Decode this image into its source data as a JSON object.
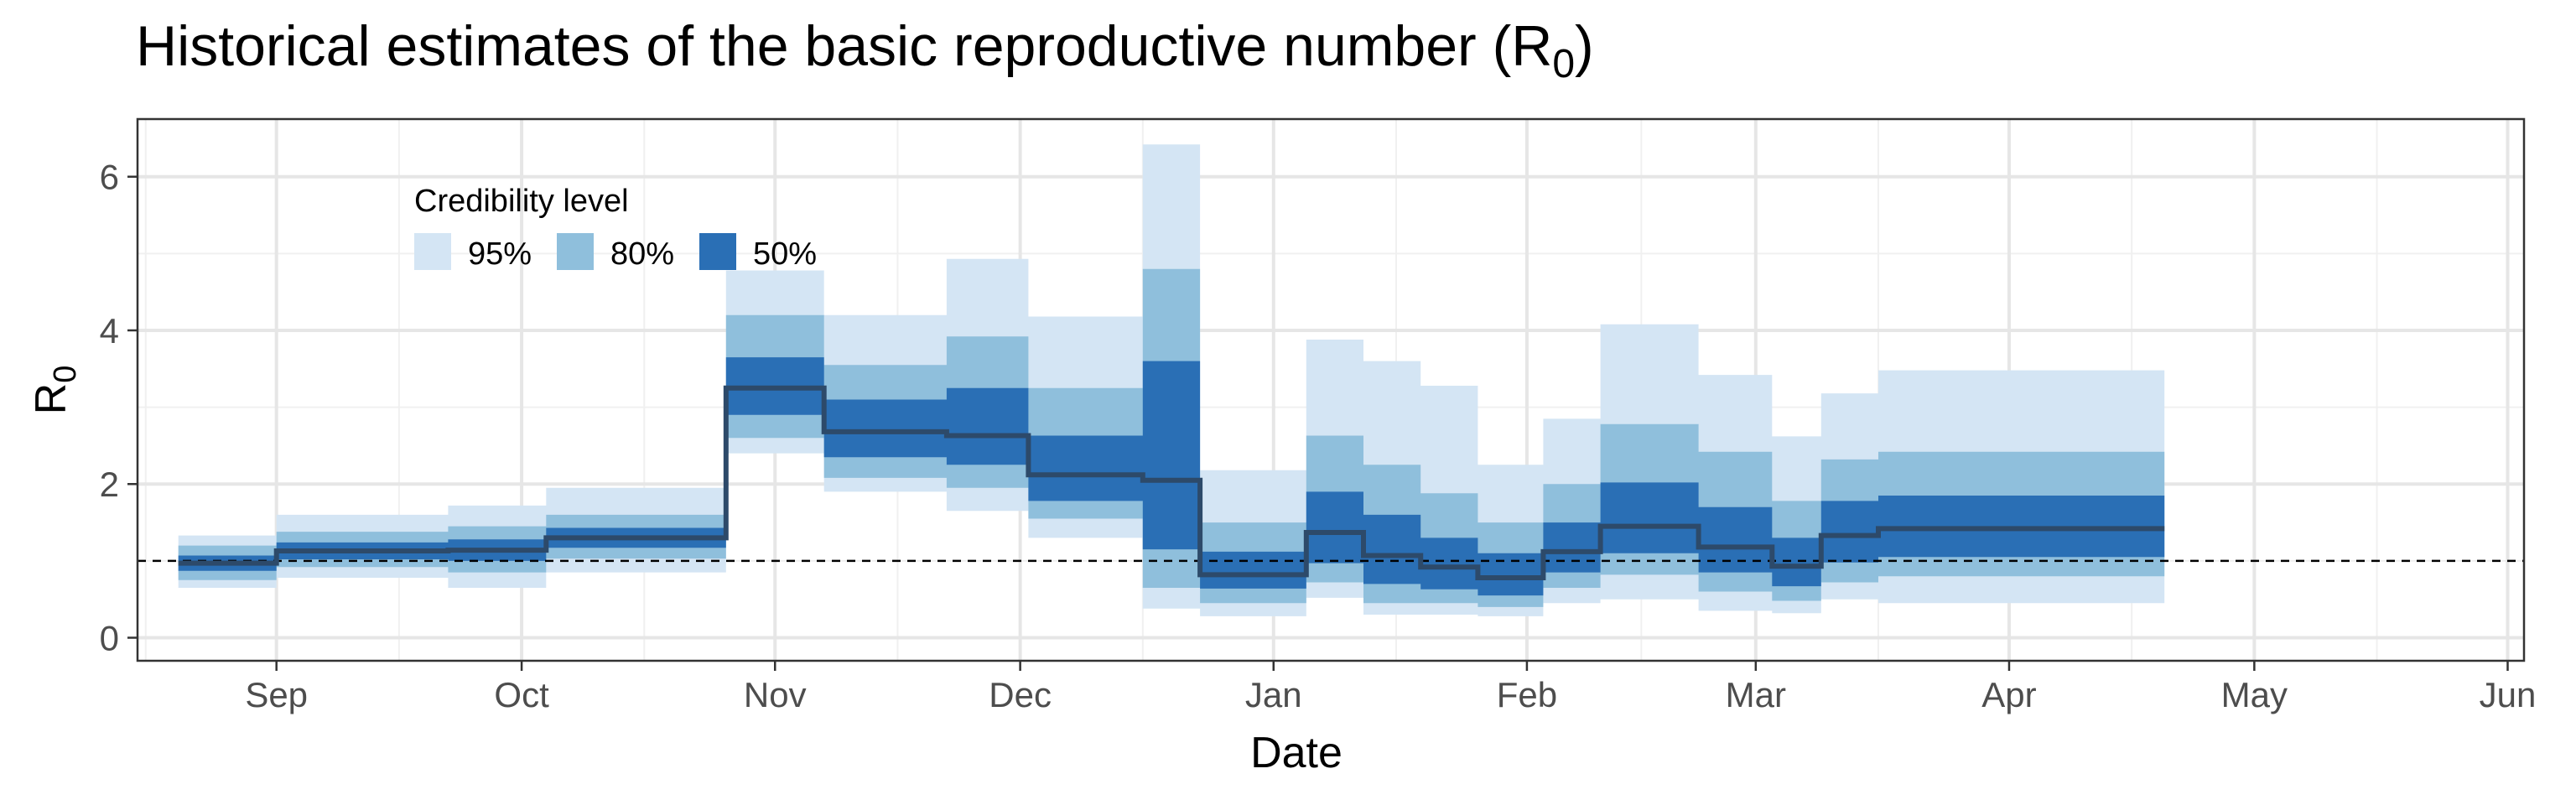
{
  "chart_data": {
    "type": "area",
    "title": "Historical estimates of the basic reproductive number (R",
    "title_subscript": "0",
    "title_suffix": ")",
    "xlabel": "Date",
    "ylabel": "R",
    "ylabel_subscript": "0",
    "x_ticks": [
      "Sep",
      "Oct",
      "Nov",
      "Dec",
      "Jan",
      "Feb",
      "Mar",
      "Apr",
      "May",
      "Jun"
    ],
    "x_tick_dates": [
      "2020-09-01",
      "2020-10-01",
      "2020-11-01",
      "2020-12-01",
      "2021-01-01",
      "2021-02-01",
      "2021-03-01",
      "2021-04-01",
      "2021-05-01",
      "2021-06-01"
    ],
    "xlim": [
      "2020-08-15",
      "2021-06-03"
    ],
    "y_ticks": [
      "0",
      "2",
      "4",
      "6"
    ],
    "y_tick_values": [
      0,
      2,
      4,
      6
    ],
    "ylim": [
      -0.3,
      6.75
    ],
    "grid": true,
    "reference_line": 1,
    "legend": {
      "title": "Credibility level",
      "position": "top-left",
      "items": [
        {
          "label": "95%",
          "color": "#d4e5f4"
        },
        {
          "label": "80%",
          "color": "#8fbfdc"
        },
        {
          "label": "50%",
          "color": "#2a6fb5"
        }
      ]
    },
    "colors": {
      "median": "#2d4a6a",
      "ref_line": "#000000"
    },
    "segments": [
      {
        "start": "2020-08-20",
        "end": "2020-09-01",
        "median": 0.97,
        "lo50": 0.87,
        "hi50": 1.07,
        "lo80": 0.75,
        "hi80": 1.2,
        "lo95": 0.65,
        "hi95": 1.33
      },
      {
        "start": "2020-09-01",
        "end": "2020-09-22",
        "median": 1.13,
        "lo50": 1.02,
        "hi50": 1.24,
        "lo80": 0.92,
        "hi80": 1.38,
        "lo95": 0.78,
        "hi95": 1.6
      },
      {
        "start": "2020-09-22",
        "end": "2020-10-04",
        "median": 1.14,
        "lo50": 1.0,
        "hi50": 1.28,
        "lo80": 0.85,
        "hi80": 1.45,
        "lo95": 0.65,
        "hi95": 1.72
      },
      {
        "start": "2020-10-04",
        "end": "2020-10-26",
        "median": 1.3,
        "lo50": 1.17,
        "hi50": 1.43,
        "lo80": 1.03,
        "hi80": 1.6,
        "lo95": 0.85,
        "hi95": 1.95
      },
      {
        "start": "2020-10-26",
        "end": "2020-11-07",
        "median": 3.25,
        "lo50": 2.9,
        "hi50": 3.65,
        "lo80": 2.6,
        "hi80": 4.2,
        "lo95": 2.4,
        "hi95": 4.78
      },
      {
        "start": "2020-11-07",
        "end": "2020-11-22",
        "median": 2.68,
        "lo50": 2.35,
        "hi50": 3.1,
        "lo80": 2.08,
        "hi80": 3.55,
        "lo95": 1.9,
        "hi95": 4.2
      },
      {
        "start": "2020-11-22",
        "end": "2020-12-02",
        "median": 2.63,
        "lo50": 2.25,
        "hi50": 3.25,
        "lo80": 1.95,
        "hi80": 3.92,
        "lo95": 1.65,
        "hi95": 4.93
      },
      {
        "start": "2020-12-02",
        "end": "2020-12-16",
        "median": 2.12,
        "lo50": 1.78,
        "hi50": 2.63,
        "lo80": 1.55,
        "hi80": 3.25,
        "lo95": 1.3,
        "hi95": 4.18
      },
      {
        "start": "2020-12-16",
        "end": "2020-12-23",
        "median": 2.05,
        "lo50": 1.15,
        "hi50": 3.6,
        "lo80": 0.65,
        "hi80": 4.8,
        "lo95": 0.38,
        "hi95": 6.42
      },
      {
        "start": "2020-12-23",
        "end": "2021-01-05",
        "median": 0.82,
        "lo50": 0.64,
        "hi50": 1.12,
        "lo80": 0.45,
        "hi80": 1.5,
        "lo95": 0.28,
        "hi95": 2.18
      },
      {
        "start": "2021-01-05",
        "end": "2021-01-12",
        "median": 1.37,
        "lo50": 0.97,
        "hi50": 1.9,
        "lo80": 0.72,
        "hi80": 2.63,
        "lo95": 0.52,
        "hi95": 3.88
      },
      {
        "start": "2021-01-12",
        "end": "2021-01-19",
        "median": 1.07,
        "lo50": 0.7,
        "hi50": 1.6,
        "lo80": 0.45,
        "hi80": 2.25,
        "lo95": 0.3,
        "hi95": 3.6
      },
      {
        "start": "2021-01-19",
        "end": "2021-01-26",
        "median": 0.92,
        "lo50": 0.63,
        "hi50": 1.3,
        "lo80": 0.45,
        "hi80": 1.88,
        "lo95": 0.3,
        "hi95": 3.28
      },
      {
        "start": "2021-01-26",
        "end": "2021-02-03",
        "median": 0.78,
        "lo50": 0.55,
        "hi50": 1.1,
        "lo80": 0.4,
        "hi80": 1.5,
        "lo95": 0.28,
        "hi95": 2.25
      },
      {
        "start": "2021-02-03",
        "end": "2021-02-10",
        "median": 1.12,
        "lo50": 0.85,
        "hi50": 1.5,
        "lo80": 0.65,
        "hi80": 2.0,
        "lo95": 0.45,
        "hi95": 2.85
      },
      {
        "start": "2021-02-10",
        "end": "2021-02-22",
        "median": 1.45,
        "lo50": 1.1,
        "hi50": 2.02,
        "lo80": 0.82,
        "hi80": 2.78,
        "lo95": 0.5,
        "hi95": 4.08
      },
      {
        "start": "2021-02-22",
        "end": "2021-03-03",
        "median": 1.18,
        "lo50": 0.85,
        "hi50": 1.7,
        "lo80": 0.6,
        "hi80": 2.42,
        "lo95": 0.35,
        "hi95": 3.42
      },
      {
        "start": "2021-03-03",
        "end": "2021-03-09",
        "median": 0.93,
        "lo50": 0.67,
        "hi50": 1.3,
        "lo80": 0.48,
        "hi80": 1.78,
        "lo95": 0.32,
        "hi95": 2.62
      },
      {
        "start": "2021-03-09",
        "end": "2021-03-16",
        "median": 1.33,
        "lo50": 0.98,
        "hi50": 1.78,
        "lo80": 0.72,
        "hi80": 2.32,
        "lo95": 0.5,
        "hi95": 3.18
      },
      {
        "start": "2021-03-16",
        "end": "2021-04-20",
        "median": 1.42,
        "lo50": 1.05,
        "hi50": 1.85,
        "lo80": 0.8,
        "hi80": 2.42,
        "lo95": 0.45,
        "hi95": 3.48
      }
    ]
  }
}
